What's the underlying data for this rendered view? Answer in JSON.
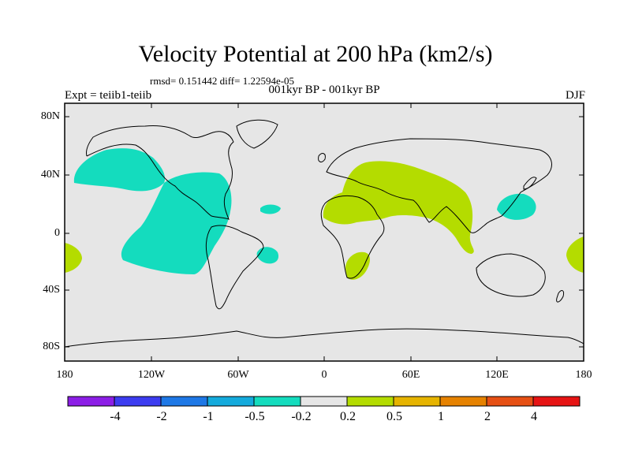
{
  "title": "Velocity Potential at 200 hPa (km2/s)",
  "stats": "rmsd= 0.151442 diff= 1.22594e-05",
  "left_label": "Expt = teiib1-teiib",
  "center_label": "001kyr BP - 001kyr BP",
  "right_label": "DJF",
  "lat_labels": [
    "80N",
    "40N",
    "0",
    "40S",
    "80S"
  ],
  "lon_labels": [
    "180",
    "120W",
    "60W",
    "0",
    "60E",
    "120E",
    "180"
  ],
  "colorbar": {
    "colors": [
      "#8c1ee6",
      "#3c3cf0",
      "#1e78e6",
      "#14aadc",
      "#14dcbe",
      "#e6e6e6",
      "#b4dc00",
      "#e6b400",
      "#e68200",
      "#e65014",
      "#e61414"
    ],
    "labels": [
      "-4",
      "-2",
      "-1",
      "-0.5",
      "-0.2",
      "0.2",
      "0.5",
      "1",
      "2",
      "4"
    ]
  },
  "colors": {
    "background": "#e6e6e6",
    "negative": "#14dcbe",
    "positive": "#b4dc00"
  }
}
